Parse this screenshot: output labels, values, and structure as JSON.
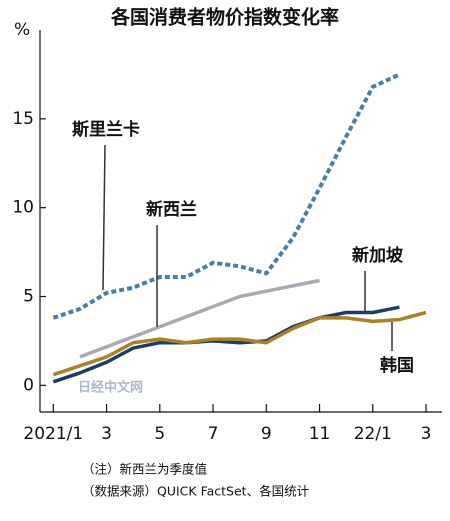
{
  "chart_data": {
    "type": "line",
    "title": "各国消费者物价指数变化率",
    "y_unit": "%",
    "xlim": [
      0.5,
      15.6
    ],
    "xticks": [
      {
        "value": 1,
        "label": "2021/1"
      },
      3,
      5,
      7,
      9,
      11,
      {
        "value": 13,
        "label": "22/1"
      },
      {
        "value": 15,
        "label": "3"
      }
    ],
    "ylim": [
      -1.5,
      20
    ],
    "yticks": [
      0,
      5,
      10,
      15
    ],
    "series": [
      {
        "name": "斯里兰卡",
        "color": "#4a7ea8",
        "dash": "dotted",
        "x": [
          1,
          2,
          3,
          4,
          5,
          6,
          7,
          8,
          9,
          10,
          11,
          12,
          13,
          14
        ],
        "values": [
          3.8,
          4.3,
          5.2,
          5.5,
          6.1,
          6.1,
          6.9,
          6.7,
          6.3,
          8.3,
          11.1,
          14.0,
          16.8,
          17.5
        ]
      },
      {
        "name": "新西兰",
        "color": "#a9a9b4",
        "dash": "solid",
        "x": [
          2,
          5,
          8,
          11
        ],
        "values": [
          1.6,
          3.3,
          5.0,
          5.9
        ]
      },
      {
        "name": "新加坡",
        "color": "#1d3d66",
        "dash": "solid",
        "x": [
          1,
          2,
          3,
          4,
          5,
          6,
          7,
          8,
          9,
          10,
          11,
          12,
          13,
          14
        ],
        "values": [
          0.2,
          0.7,
          1.3,
          2.1,
          2.4,
          2.4,
          2.5,
          2.4,
          2.5,
          3.3,
          3.8,
          4.1,
          4.1,
          4.4
        ]
      },
      {
        "name": "韩国",
        "color": "#a8812c",
        "dash": "solid",
        "x": [
          1,
          2,
          3,
          4,
          5,
          6,
          7,
          8,
          9,
          10,
          11,
          12,
          13,
          14,
          15
        ],
        "values": [
          0.6,
          1.1,
          1.6,
          2.4,
          2.6,
          2.4,
          2.6,
          2.6,
          2.4,
          3.2,
          3.8,
          3.8,
          3.6,
          3.7,
          4.1
        ]
      }
    ],
    "watermark": "日经中文网",
    "notes": [
      "（注）新西兰为季度值",
      "（数据来源）QUICK FactSet、各国统计"
    ]
  }
}
